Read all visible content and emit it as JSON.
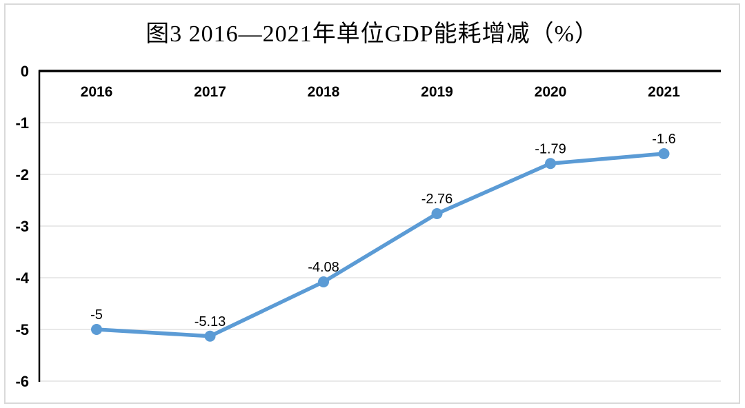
{
  "chart_data": {
    "type": "line",
    "title": "图3 2016—2021年单位GDP能耗增减（%）",
    "categories": [
      "2016",
      "2017",
      "2018",
      "2019",
      "2020",
      "2021"
    ],
    "values": [
      -5,
      -5.13,
      -4.08,
      -2.76,
      -1.79,
      -1.6
    ],
    "point_labels": [
      "-5",
      "-5.13",
      "-4.08",
      "-2.76",
      "-1.79",
      "-1.6"
    ],
    "xlabel": "",
    "ylabel": "",
    "ylim": [
      -6,
      0
    ],
    "y_ticks": [
      0,
      -1,
      -2,
      -3,
      -4,
      -5,
      -6
    ],
    "y_tick_labels": [
      "0",
      "-1",
      "-2",
      "-3",
      "-4",
      "-5",
      "-6"
    ],
    "grid": true,
    "legend_position": "none",
    "marker": "circle",
    "x_labels_position": "top-inside"
  },
  "colors": {
    "line": "#5b9bd5",
    "marker": "#5b9bd5",
    "grid": "#e9e9e9",
    "axis": "#000000",
    "frame": "#d9d9d9",
    "text": "#000000",
    "background": "#ffffff"
  }
}
